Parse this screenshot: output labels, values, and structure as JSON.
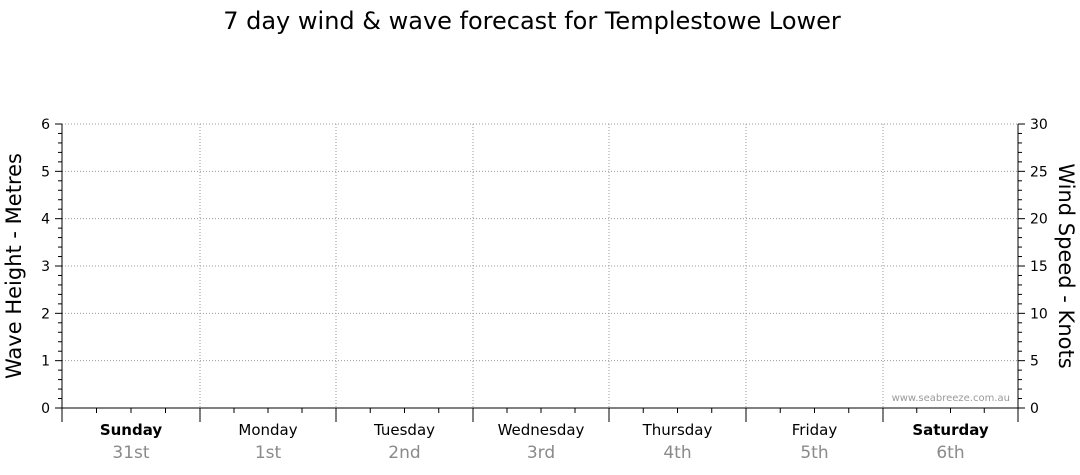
{
  "chart_data": {
    "type": "line",
    "title": "7 day wind & wave forecast for Templestowe Lower",
    "left_axis": {
      "label": "Wave Height - Metres",
      "ylim": [
        0,
        6
      ],
      "ticks": [
        "0",
        "1",
        "2",
        "3",
        "4",
        "5",
        "6"
      ]
    },
    "right_axis": {
      "label": "Wind Speed - Knots",
      "ylim": [
        0,
        30
      ],
      "ticks": [
        "0",
        "5",
        "10",
        "15",
        "20",
        "25",
        "30"
      ]
    },
    "days": [
      {
        "name": "Sunday",
        "date": "31st",
        "bold": true
      },
      {
        "name": "Monday",
        "date": "1st",
        "bold": false
      },
      {
        "name": "Tuesday",
        "date": "2nd",
        "bold": false
      },
      {
        "name": "Wednesday",
        "date": "3rd",
        "bold": false
      },
      {
        "name": "Thursday",
        "date": "4th",
        "bold": false
      },
      {
        "name": "Friday",
        "date": "5th",
        "bold": false
      },
      {
        "name": "Saturday",
        "date": "6th",
        "bold": true
      }
    ],
    "series": [],
    "grid": true,
    "watermark": "www.seabreeze.com.au",
    "colors": {
      "grid": "#9a9a9a",
      "axis": "#000000",
      "date_text": "#8a8a8a"
    }
  }
}
